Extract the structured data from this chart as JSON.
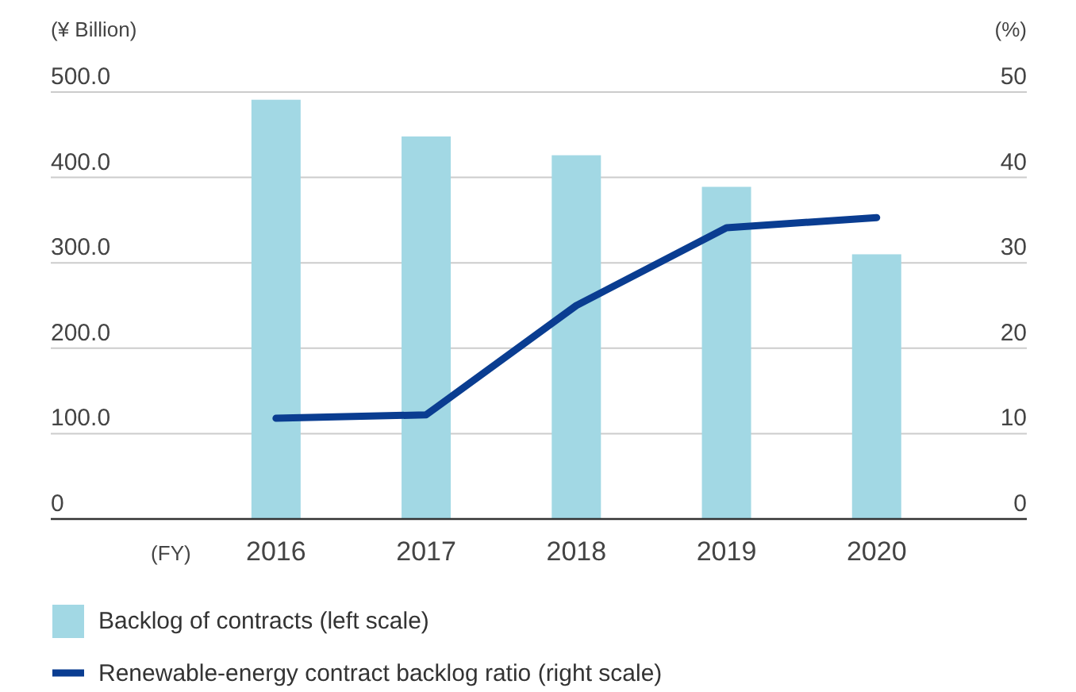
{
  "chart_data": {
    "type": "bar",
    "xlabel": "(FY)",
    "ylabel": "(¥ Billion)",
    "y2label": "(%)",
    "categories": [
      "2016",
      "2017",
      "2018",
      "2019",
      "2020"
    ],
    "series": [
      {
        "name": "Backlog of contracts (left scale)",
        "color": "#a2d8e4",
        "values": [
          491,
          448,
          426,
          389,
          310
        ]
      },
      {
        "name": "Renewable-energy contract backlog ratio (right scale)",
        "type": "line",
        "axis": "y2",
        "color": "#0a3d91",
        "values": [
          11.8,
          12.2,
          25.0,
          34.1,
          35.3
        ]
      }
    ],
    "ylim": [
      0,
      500
    ],
    "yticks": [
      {
        "value": 0,
        "label": "0"
      },
      {
        "value": 100,
        "label": "100.0"
      },
      {
        "value": 200,
        "label": "200.0"
      },
      {
        "value": 300,
        "label": "300.0"
      },
      {
        "value": 400,
        "label": "400.0"
      },
      {
        "value": 500,
        "label": "500.0"
      }
    ],
    "y2lim": [
      0,
      50
    ],
    "y2ticks": [
      0,
      10,
      20,
      30,
      40,
      50
    ],
    "grid": "y",
    "legend": "bottom",
    "marker": "none",
    "line_style": "solid"
  }
}
